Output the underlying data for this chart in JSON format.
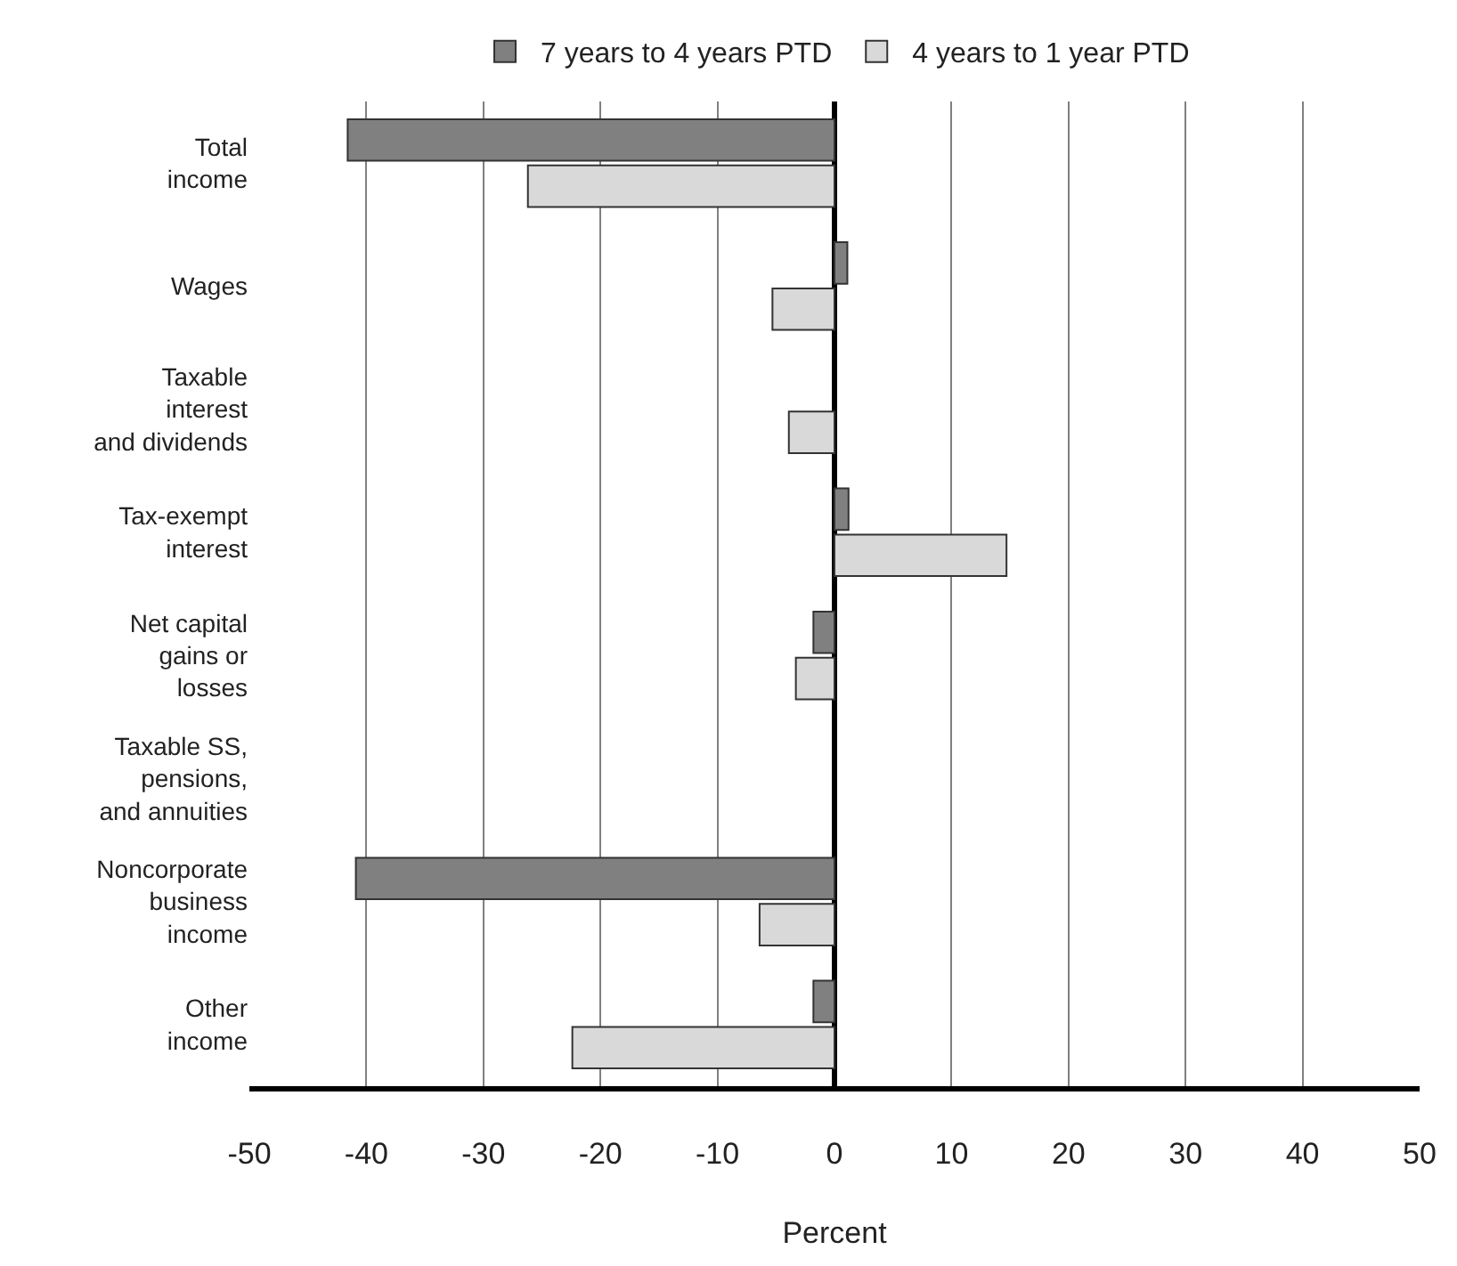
{
  "chart_data": {
    "type": "bar",
    "orientation": "horizontal",
    "xlabel": "Percent",
    "categories": [
      "Total\nincome",
      "Wages",
      "Taxable\ninterest\nand dividends",
      "Tax-exempt\ninterest",
      "Net capital\ngains or\nlosses",
      "Taxable SS,\npensions,\nand annuities",
      "Noncorporate\nbusiness\nincome",
      "Other\nincome"
    ],
    "series": [
      {
        "name": "7 years to 4 years PTD",
        "color": "#808080",
        "values": [
          -41.6,
          1.1,
          null,
          1.2,
          -1.8,
          null,
          -40.9,
          -1.8
        ]
      },
      {
        "name": "4 years to 1 year PTD",
        "color": "#d9d9d9",
        "values": [
          -26.2,
          -5.3,
          -3.9,
          14.7,
          -3.3,
          null,
          -6.4,
          -22.4
        ]
      }
    ],
    "xlim": [
      -50,
      50
    ],
    "xticks": [
      -50,
      -40,
      -30,
      -20,
      -10,
      0,
      10,
      20,
      30,
      40,
      50
    ],
    "grid": "x",
    "legend": "top"
  }
}
